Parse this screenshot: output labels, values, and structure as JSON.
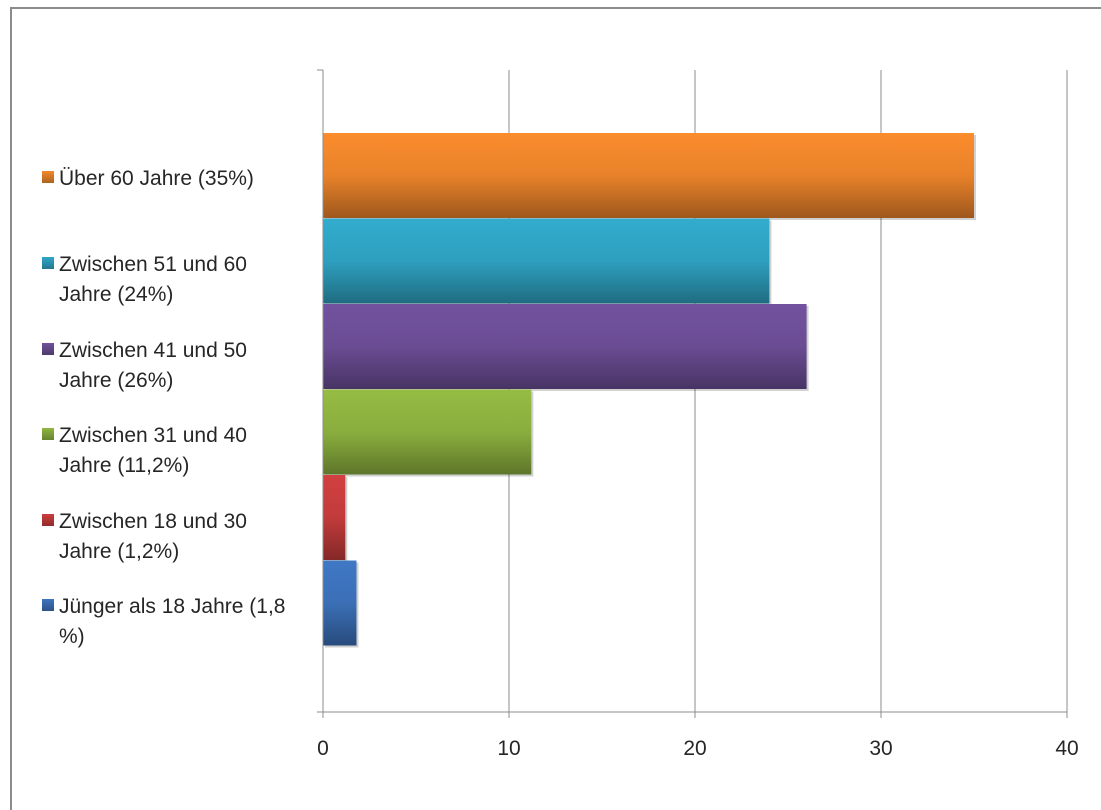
{
  "chart_data": {
    "type": "bar",
    "orientation": "horizontal",
    "title": "",
    "xlabel": "",
    "ylabel": "",
    "xlim": [
      0,
      40
    ],
    "xticks": [
      0,
      10,
      20,
      30,
      40
    ],
    "grid": true,
    "legend_position": "left",
    "categories": [
      "Über 60 Jahre (35%)",
      "Zwischen 51 und 60 Jahre (24%)",
      "Zwischen 41 und 50 Jahre (26%)",
      "Zwischen 31 und 40 Jahre (11,2%)",
      "Zwischen 18 und 30 Jahre (1,2%)",
      "Jünger als 18 Jahre (1,8 %)"
    ],
    "values": [
      35,
      24,
      26,
      11.2,
      1.2,
      1.8
    ],
    "colors": [
      "#E8822A",
      "#2E9FBE",
      "#6A4C93",
      "#8AAE3E",
      "#C23B3B",
      "#3B6FB6"
    ]
  }
}
